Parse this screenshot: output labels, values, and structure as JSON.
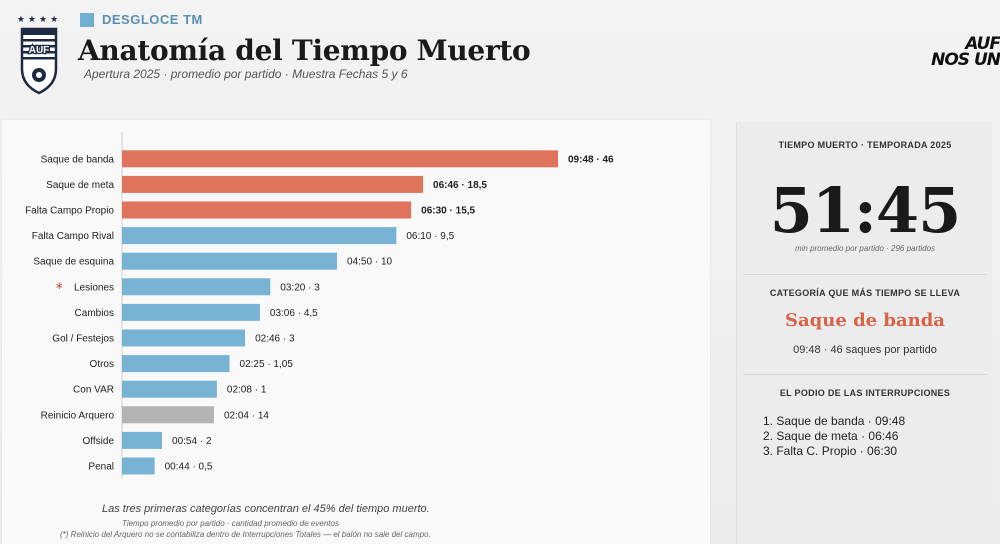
{
  "header": {
    "kicker": "DESGLOCE TM",
    "title": "Anatomía del Tiempo Muerto",
    "subtitle": "Apertura 2025  ·  promedio por partido  ·  Muestra Fechas 5 y 6",
    "crest_stars": "★★★★",
    "crest_letters": "AUF",
    "brand_line1": "AUF",
    "brand_line2": "NOS UN"
  },
  "colors": {
    "top3": "#e0735c",
    "regular": "#78b3d3",
    "excluded": "#b3b3b3",
    "accent_text": "#d9634a",
    "asterisk": "#c0392b"
  },
  "chart_data": {
    "type": "bar",
    "orientation": "horizontal",
    "categories": [
      "Saque de banda",
      "Saque de meta",
      "Falta Campo Propio",
      "Falta Campo Rival",
      "Saque de esquina",
      "Lesiones",
      "Cambios",
      "Gol / Festejos",
      "Otros",
      "Con VAR",
      "Reinicio Arquero",
      "Offside",
      "Penal"
    ],
    "values_seconds": [
      588,
      406,
      390,
      370,
      290,
      200,
      186,
      166,
      145,
      128,
      124,
      54,
      44
    ],
    "time_labels": [
      "09:48",
      "06:46",
      "06:30",
      "06:10",
      "04:50",
      "03:20",
      "03:06",
      "02:46",
      "02:25",
      "02:08",
      "02:04",
      "00:54",
      "00:44"
    ],
    "event_counts": [
      "46",
      "18,5",
      "15,5",
      "9,5",
      "10",
      "3",
      "4,5",
      "3",
      "1,05",
      "1",
      "14",
      "2",
      "0,5"
    ],
    "highlight_top": 3,
    "excluded_category": "Reinicio Arquero",
    "asterisk_category": "Lesiones",
    "separator": "·",
    "footnote_main": "Las tres primeras categorías concentran el 45% del tiempo muerto.",
    "footnote_legend": "Tiempo promedio por partido  ·  cantidad promedio de eventos",
    "footnote_excluded": "(*) Reinicio del Arquero no se contabiliza dentro de Interrupciones Totales — el balón no sale del campo."
  },
  "summary": {
    "title": "TIEMPO MUERTO · TEMPORADA 2025",
    "value": "51:45",
    "value_sub": "min promedio por partido  ·  296 partidos",
    "top_title": "CATEGORÍA QUE MÁS TIEMPO SE LLEVA",
    "top_category": "Saque de banda",
    "top_detail": "09:48  ·  46 saques por partido",
    "podium_title": "EL PODIO DE LAS INTERRUPCIONES",
    "podium": [
      "1.  Saque de banda  ·  09:48",
      "2.  Saque de meta  ·  06:46",
      "3.  Falta C. Propio  ·  06:30"
    ]
  }
}
